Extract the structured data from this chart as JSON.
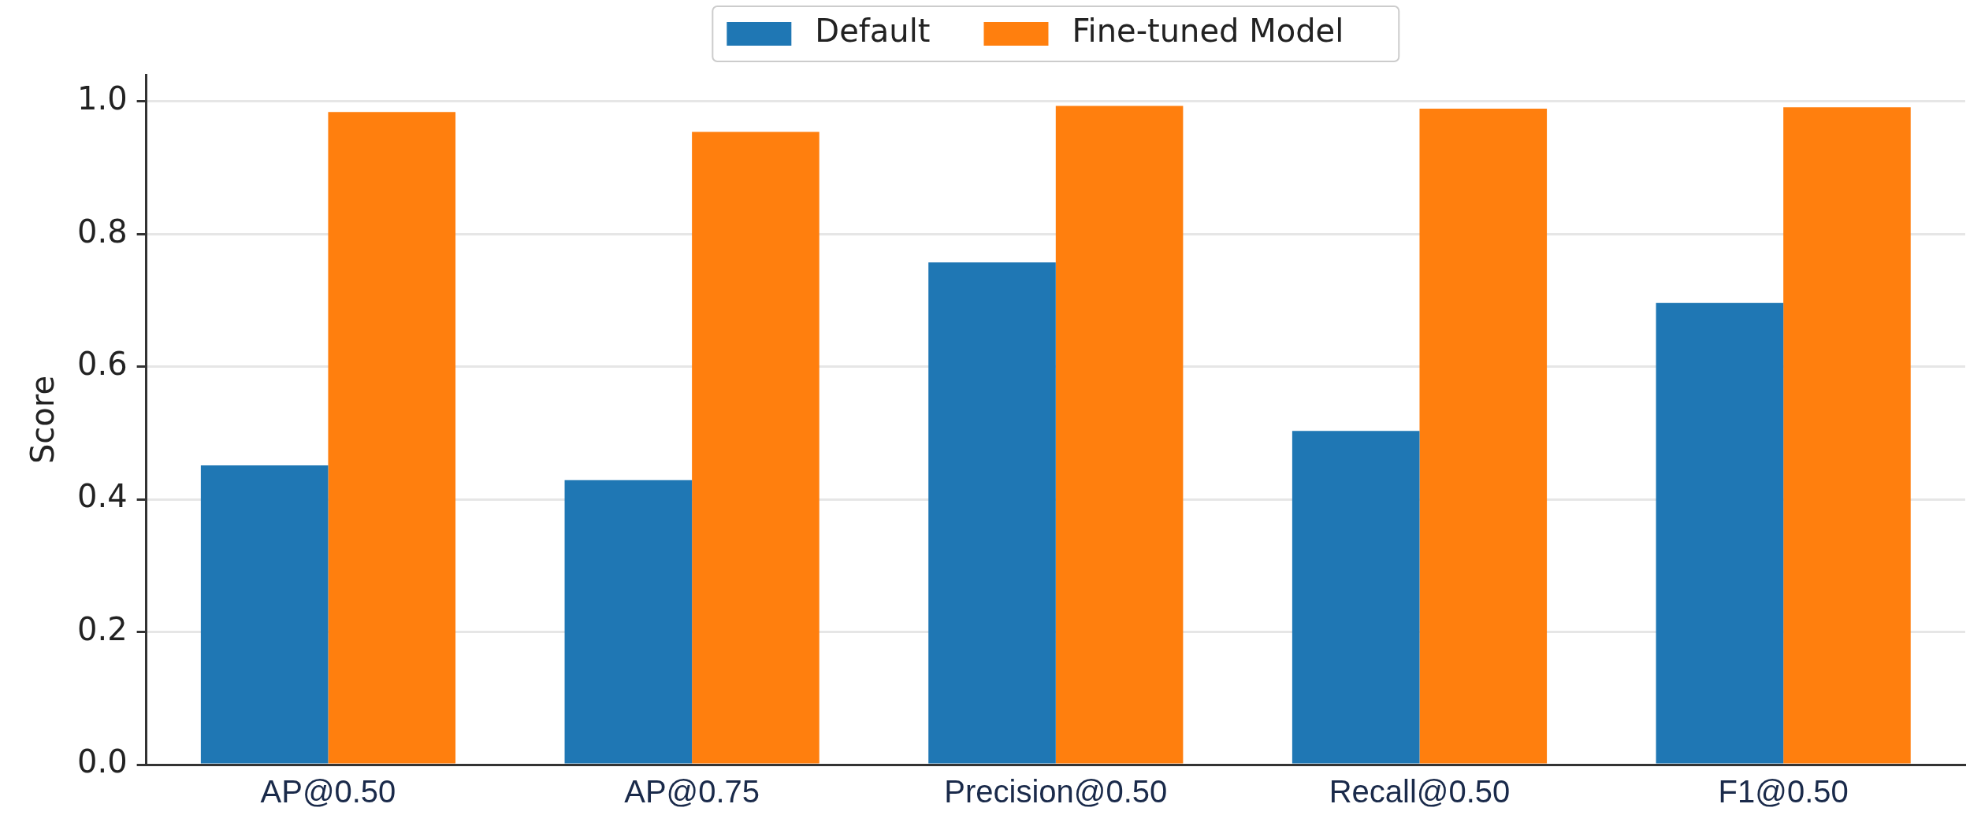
{
  "chart_data": {
    "type": "bar",
    "ylabel": "Score",
    "categories": [
      "AP@0.50",
      "AP@0.75",
      "Precision@0.50",
      "Recall@0.50",
      "F1@0.50"
    ],
    "series": [
      {
        "name": "Default",
        "color": "#1f77b4",
        "values": [
          0.451,
          0.429,
          0.757,
          0.503,
          0.696
        ]
      },
      {
        "name": "Fine-tuned Model",
        "color": "#ff7f0e",
        "values": [
          0.984,
          0.954,
          0.993,
          0.989,
          0.991
        ]
      }
    ],
    "ylim": [
      0,
      1.04
    ],
    "yticks": [
      {
        "value": 0,
        "label": "0.0"
      },
      0.2,
      0.4,
      0.6,
      0.8,
      {
        "value": 1,
        "label": "1.0"
      }
    ],
    "grid": "y",
    "legend": "top"
  }
}
